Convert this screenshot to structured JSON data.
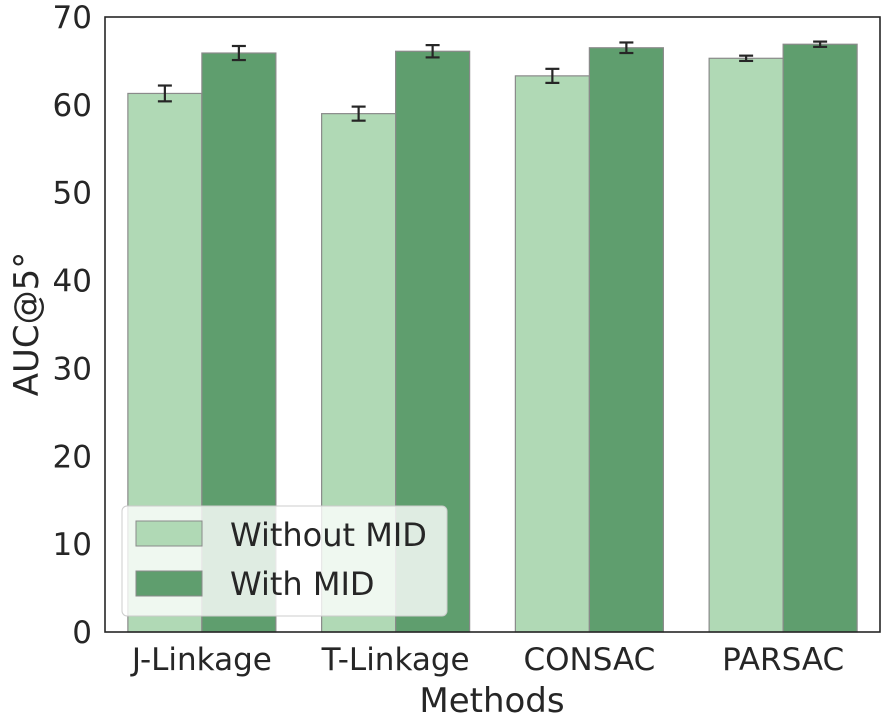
{
  "chart_data": {
    "type": "bar",
    "xlabel": "Methods",
    "ylabel": "AUC@5°",
    "ylim": [
      0,
      70
    ],
    "yticks": [
      0,
      10,
      20,
      30,
      40,
      50,
      60,
      70
    ],
    "categories": [
      "J-Linkage",
      "T-Linkage",
      "CONSAC",
      "PARSAC"
    ],
    "series": [
      {
        "name": "Without MID",
        "color": "#b0d9b5",
        "values": [
          61.3,
          59.0,
          63.3,
          65.3
        ],
        "errors": [
          0.9,
          0.8,
          0.8,
          0.3
        ]
      },
      {
        "name": "With MID",
        "color": "#5f9e6e",
        "values": [
          65.9,
          66.1,
          66.5,
          66.9
        ],
        "errors": [
          0.8,
          0.7,
          0.6,
          0.3
        ]
      }
    ],
    "legend": "lower-left",
    "grid": false
  }
}
